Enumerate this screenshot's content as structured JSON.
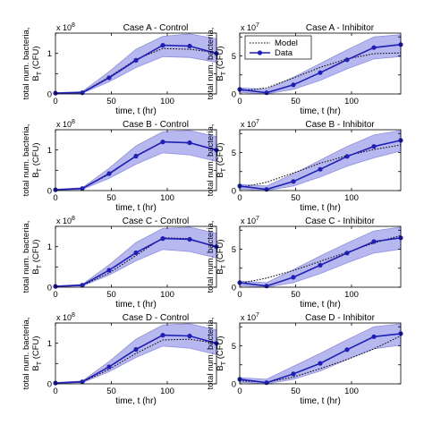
{
  "chart_data": [
    {
      "type": "line",
      "title": "Case A - Control",
      "xlabel": "time, t (hr)",
      "ylabel": [
        "total num. bacteria,",
        "B_T (CFU)"
      ],
      "xlim": [
        0,
        144
      ],
      "ylim": [
        0,
        1.5
      ],
      "y_exponent": "8",
      "xticks": [
        0,
        50,
        100
      ],
      "yticks": [
        0,
        0.5,
        1,
        1.5
      ],
      "ytick_labels": [
        "0",
        "",
        "1",
        ""
      ],
      "x": [
        0,
        24,
        48,
        72,
        96,
        120,
        144
      ],
      "series": [
        {
          "name": "",
          "kind": "data",
          "y": [
            0.02,
            0.03,
            0.4,
            0.83,
            1.2,
            1.18,
            1.0
          ]
        },
        {
          "name": "",
          "kind": "model",
          "y": [
            0.02,
            0.04,
            0.42,
            0.85,
            1.12,
            1.1,
            1.02
          ]
        },
        {
          "name": "",
          "kind": "band_upper",
          "y": [
            0.03,
            0.06,
            0.55,
            1.1,
            1.42,
            1.48,
            1.36
          ]
        },
        {
          "name": "",
          "kind": "band_lower",
          "y": [
            0.01,
            0.02,
            0.3,
            0.65,
            0.92,
            0.9,
            0.78
          ]
        }
      ]
    },
    {
      "type": "line",
      "title": "Case A - Inhibitor",
      "xlabel": "time, t (hr)",
      "ylabel": [
        "total num. bacteria,",
        "B_T (CFU)"
      ],
      "xlim": [
        0,
        144
      ],
      "ylim": [
        0,
        8
      ],
      "y_exponent": "7",
      "xticks": [
        0,
        50,
        100
      ],
      "yticks": [
        0,
        2.5,
        5,
        7.5
      ],
      "ytick_labels": [
        "0",
        "",
        "5",
        ""
      ],
      "x": [
        0,
        24,
        48,
        72,
        96,
        120,
        144
      ],
      "legend": {
        "entries": [
          "Model",
          "Data"
        ],
        "placement": "top-left"
      },
      "series": [
        {
          "name": "Data",
          "kind": "data",
          "y": [
            0.6,
            0.15,
            1.2,
            2.8,
            4.5,
            6.1,
            6.5
          ]
        },
        {
          "name": "Model",
          "kind": "model",
          "y": [
            0.4,
            0.8,
            2.1,
            3.5,
            4.6,
            5.3,
            5.4
          ]
        },
        {
          "name": "",
          "kind": "band_upper",
          "y": [
            0.8,
            0.6,
            2.2,
            4.0,
            5.8,
            7.5,
            7.8
          ]
        },
        {
          "name": "",
          "kind": "band_lower",
          "y": [
            0.2,
            0.0,
            0.6,
            1.8,
            3.3,
            4.6,
            4.9
          ]
        }
      ]
    },
    {
      "type": "line",
      "title": "Case B - Control",
      "xlabel": "time, t (hr)",
      "ylabel": [
        "total num. bacteria,",
        "B_T (CFU)"
      ],
      "xlim": [
        0,
        144
      ],
      "ylim": [
        0,
        1.5
      ],
      "y_exponent": "8",
      "xticks": [
        0,
        50,
        100
      ],
      "yticks": [
        0,
        0.5,
        1,
        1.5
      ],
      "ytick_labels": [
        "0",
        "",
        "1",
        ""
      ],
      "x": [
        0,
        24,
        48,
        72,
        96,
        120,
        144
      ],
      "series": [
        {
          "name": "",
          "kind": "data",
          "y": [
            0.02,
            0.05,
            0.42,
            0.85,
            1.2,
            1.18,
            1.0
          ]
        },
        {
          "name": "",
          "kind": "model",
          "y": [
            0.02,
            0.05,
            0.4,
            0.86,
            1.2,
            1.17,
            1.0
          ]
        },
        {
          "name": "",
          "kind": "band_upper",
          "y": [
            0.03,
            0.07,
            0.55,
            1.1,
            1.45,
            1.48,
            1.33
          ]
        },
        {
          "name": "",
          "kind": "band_lower",
          "y": [
            0.01,
            0.03,
            0.3,
            0.65,
            0.93,
            0.88,
            0.72
          ]
        }
      ]
    },
    {
      "type": "line",
      "title": "Case B - Inhibitor",
      "xlabel": "time, t (hr)",
      "ylabel": [
        "total num. bacteria,",
        "B_T (CFU)"
      ],
      "xlim": [
        0,
        144
      ],
      "ylim": [
        0,
        8
      ],
      "y_exponent": "7",
      "xticks": [
        0,
        50,
        100
      ],
      "yticks": [
        0,
        2.5,
        5,
        7.5
      ],
      "ytick_labels": [
        "0",
        "",
        "5",
        ""
      ],
      "x": [
        0,
        24,
        48,
        72,
        96,
        120,
        144
      ],
      "series": [
        {
          "name": "",
          "kind": "data",
          "y": [
            0.6,
            0.15,
            1.2,
            2.8,
            4.5,
            5.8,
            6.6
          ]
        },
        {
          "name": "",
          "kind": "model",
          "y": [
            0.4,
            1.1,
            2.3,
            3.6,
            4.6,
            5.4,
            6.0
          ]
        },
        {
          "name": "",
          "kind": "band_upper",
          "y": [
            0.8,
            0.6,
            2.2,
            4.0,
            5.8,
            7.3,
            7.9
          ]
        },
        {
          "name": "",
          "kind": "band_lower",
          "y": [
            0.2,
            0.0,
            0.6,
            1.8,
            3.2,
            4.3,
            5.2
          ]
        }
      ]
    },
    {
      "type": "line",
      "title": "Case C - Control",
      "xlabel": "time, t (hr)",
      "ylabel": [
        "total num. bacteria,",
        "B_T (CFU)"
      ],
      "xlim": [
        0,
        144
      ],
      "ylim": [
        0,
        1.5
      ],
      "y_exponent": "8",
      "xticks": [
        0,
        50,
        100
      ],
      "yticks": [
        0,
        0.5,
        1,
        1.5
      ],
      "ytick_labels": [
        "0",
        "",
        "1",
        ""
      ],
      "x": [
        0,
        24,
        48,
        72,
        96,
        120,
        144
      ],
      "series": [
        {
          "name": "",
          "kind": "data",
          "y": [
            0.02,
            0.05,
            0.42,
            0.85,
            1.2,
            1.18,
            1.0
          ]
        },
        {
          "name": "",
          "kind": "model",
          "y": [
            0.02,
            0.04,
            0.35,
            0.78,
            1.22,
            1.2,
            0.98
          ]
        },
        {
          "name": "",
          "kind": "band_upper",
          "y": [
            0.03,
            0.07,
            0.55,
            1.1,
            1.45,
            1.48,
            1.33
          ]
        },
        {
          "name": "",
          "kind": "band_lower",
          "y": [
            0.01,
            0.03,
            0.3,
            0.65,
            0.93,
            0.88,
            0.72
          ]
        }
      ]
    },
    {
      "type": "line",
      "title": "Case C - Inhibitor",
      "xlabel": "time, t (hr)",
      "ylabel": [
        "total num. bacteria,",
        "B_T (CFU)"
      ],
      "xlim": [
        0,
        144
      ],
      "ylim": [
        0,
        8
      ],
      "y_exponent": "7",
      "xticks": [
        0,
        50,
        100
      ],
      "yticks": [
        0,
        2.5,
        5,
        7.5
      ],
      "ytick_labels": [
        "0",
        "",
        "5",
        ""
      ],
      "x": [
        0,
        24,
        48,
        72,
        96,
        120,
        144
      ],
      "series": [
        {
          "name": "",
          "kind": "data",
          "y": [
            0.6,
            0.15,
            1.3,
            2.9,
            4.5,
            6.0,
            6.5
          ]
        },
        {
          "name": "",
          "kind": "model",
          "y": [
            0.5,
            1.2,
            2.2,
            3.4,
            4.6,
            5.8,
            6.8
          ]
        },
        {
          "name": "",
          "kind": "band_upper",
          "y": [
            0.8,
            0.6,
            2.3,
            4.1,
            5.8,
            7.4,
            7.9
          ]
        },
        {
          "name": "",
          "kind": "band_lower",
          "y": [
            0.2,
            0.0,
            0.6,
            1.8,
            3.2,
            4.5,
            5.0
          ]
        }
      ]
    },
    {
      "type": "line",
      "title": "Case D - Control",
      "xlabel": "time, t (hr)",
      "ylabel": [
        "total num. bacteria,",
        "B_T (CFU)"
      ],
      "xlim": [
        0,
        144
      ],
      "ylim": [
        0,
        1.5
      ],
      "y_exponent": "8",
      "xticks": [
        0,
        50,
        100
      ],
      "yticks": [
        0,
        0.5,
        1,
        1.5
      ],
      "ytick_labels": [
        "0",
        "",
        "1",
        ""
      ],
      "x": [
        0,
        24,
        48,
        72,
        96,
        120,
        144
      ],
      "series": [
        {
          "name": "",
          "kind": "data",
          "y": [
            0.02,
            0.05,
            0.42,
            0.85,
            1.2,
            1.18,
            1.0
          ]
        },
        {
          "name": "",
          "kind": "model",
          "y": [
            0.02,
            0.04,
            0.36,
            0.75,
            1.08,
            1.1,
            1.0
          ]
        },
        {
          "name": "",
          "kind": "band_upper",
          "y": [
            0.03,
            0.07,
            0.55,
            1.1,
            1.45,
            1.48,
            1.33
          ]
        },
        {
          "name": "",
          "kind": "band_lower",
          "y": [
            0.01,
            0.03,
            0.3,
            0.65,
            0.93,
            0.88,
            0.72
          ]
        }
      ]
    },
    {
      "type": "line",
      "title": "Case D - Inhibitor",
      "xlabel": "time, t (hr)",
      "ylabel": [
        "total num. bacteria,",
        "B_T (CFU)"
      ],
      "xlim": [
        0,
        144
      ],
      "ylim": [
        0,
        8
      ],
      "y_exponent": "7",
      "xticks": [
        0,
        50,
        100
      ],
      "yticks": [
        0,
        2.5,
        5,
        7.5
      ],
      "ytick_labels": [
        "0",
        "",
        "5",
        ""
      ],
      "x": [
        0,
        24,
        48,
        72,
        96,
        120,
        144
      ],
      "series": [
        {
          "name": "",
          "kind": "data",
          "y": [
            0.6,
            0.15,
            1.3,
            2.7,
            4.5,
            6.2,
            6.6
          ]
        },
        {
          "name": "",
          "kind": "model",
          "y": [
            0.4,
            0.2,
            0.9,
            2.0,
            3.2,
            4.6,
            6.3
          ]
        },
        {
          "name": "",
          "kind": "band_upper",
          "y": [
            0.8,
            0.6,
            2.3,
            4.0,
            5.8,
            7.5,
            7.9
          ]
        },
        {
          "name": "",
          "kind": "band_lower",
          "y": [
            0.2,
            0.0,
            0.6,
            1.7,
            3.2,
            4.6,
            5.1
          ]
        }
      ]
    }
  ],
  "colors": {
    "data_line": "#1f1fb4",
    "band_fill": "#b8b8f0",
    "band_edge": "#8f8fdc",
    "model_line": "#000000",
    "axes": "#000000"
  }
}
